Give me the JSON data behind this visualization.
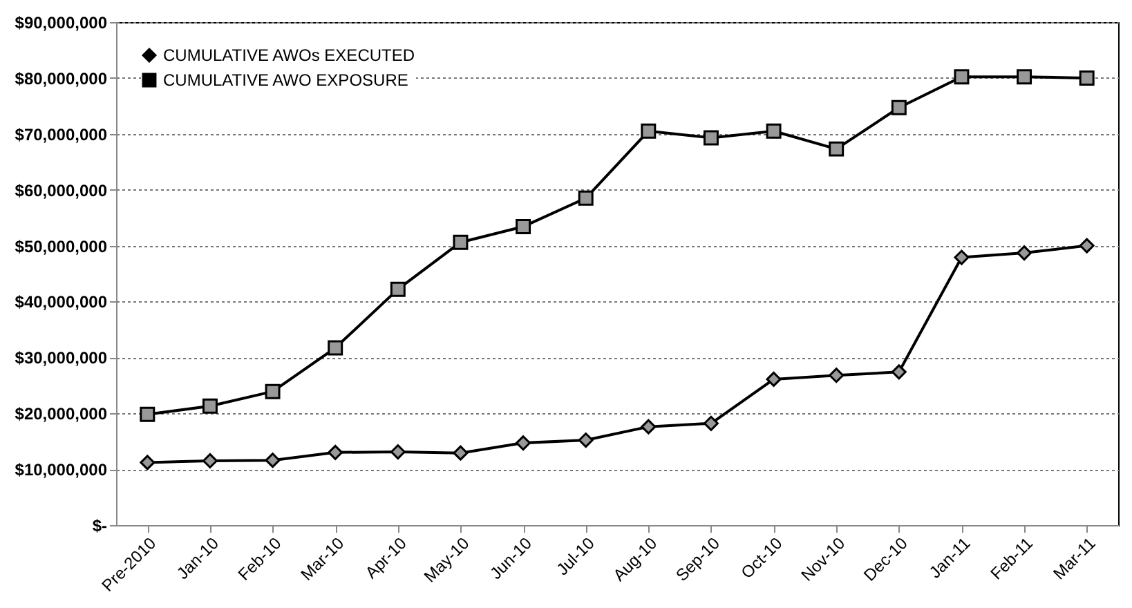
{
  "chart_data": {
    "type": "line",
    "categories": [
      "Pre-2010",
      "Jan-10",
      "Feb-10",
      "Mar-10",
      "Apr-10",
      "May-10",
      "Jun-10",
      "Jul-10",
      "Aug-10",
      "Sep-10",
      "Oct-10",
      "Nov-10",
      "Dec-10",
      "Jan-11",
      "Feb-11",
      "Mar-11"
    ],
    "series": [
      {
        "name": "CUMULATIVE AWOs EXECUTED",
        "color": "#000000",
        "marker": "diamond",
        "values": [
          11200000,
          11500000,
          11600000,
          13000000,
          13100000,
          12900000,
          14700000,
          15200000,
          17600000,
          18200000,
          26100000,
          26800000,
          27400000,
          47900000,
          48700000,
          50000000
        ]
      },
      {
        "name": "CUMULATIVE AWO EXPOSURE",
        "color": "#000000",
        "marker": "square",
        "values": [
          19800000,
          21300000,
          23900000,
          31700000,
          42200000,
          50600000,
          53400000,
          58500000,
          70500000,
          69300000,
          70500000,
          67300000,
          74700000,
          80200000,
          80200000,
          80000000
        ]
      }
    ],
    "ylim": [
      0,
      90000000
    ],
    "yticks": [
      {
        "value": 0,
        "label": "$-"
      },
      {
        "value": 10000000,
        "label": "$10,000,000"
      },
      {
        "value": 20000000,
        "label": "$20,000,000"
      },
      {
        "value": 30000000,
        "label": "$30,000,000"
      },
      {
        "value": 40000000,
        "label": "$40,000,000"
      },
      {
        "value": 50000000,
        "label": "$50,000,000"
      },
      {
        "value": 60000000,
        "label": "$60,000,000"
      },
      {
        "value": 70000000,
        "label": "$70,000,000"
      },
      {
        "value": 80000000,
        "label": "$80,000,000"
      },
      {
        "value": 90000000,
        "label": "$90,000,000"
      }
    ],
    "grid": "y",
    "legend": "top left",
    "line_style": "solid"
  }
}
